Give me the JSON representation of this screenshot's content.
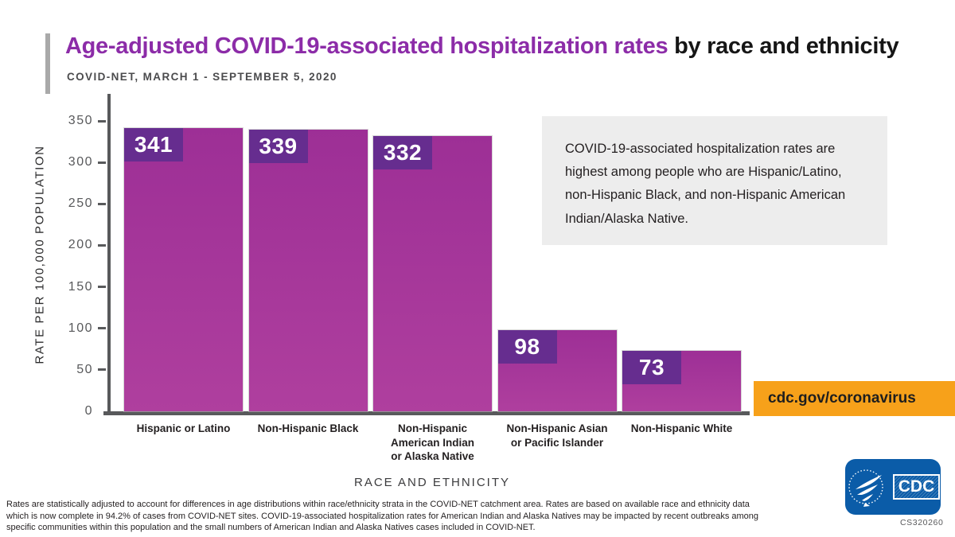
{
  "header": {
    "title_highlight": "Age-adjusted COVID-19-associated hospitalization rates",
    "title_rest": " by race and ethnicity",
    "subtitle": "COVID-NET, MARCH 1 - SEPTEMBER 5, 2020"
  },
  "chart_data": {
    "type": "bar",
    "title": "Age-adjusted COVID-19-associated hospitalization rates by race and ethnicity",
    "categories": [
      "Hispanic or Latino",
      "Non-Hispanic Black",
      "Non-Hispanic\nAmerican Indian\nor Alaska Native",
      "Non-Hispanic Asian\nor Pacific Islander",
      "Non-Hispanic White"
    ],
    "values": [
      341,
      339,
      332,
      98,
      73
    ],
    "xlabel": "RACE AND ETHNICITY",
    "ylabel": "RATE PER 100,000 POPULATION",
    "ylim": [
      0,
      350
    ],
    "yticks": [
      0,
      50,
      100,
      150,
      200,
      250,
      300,
      350
    ],
    "grid": false,
    "legend": false,
    "bar_value_labels": [
      "341",
      "339",
      "332",
      "98",
      "73"
    ]
  },
  "callout": {
    "text": "COVID-19-associated hospitalization rates are highest among people who are Hispanic/Latino, non-Hispanic Black, and non-Hispanic American Indian/Alaska Native."
  },
  "banner": {
    "url_label": "cdc.gov/coronavirus"
  },
  "logo": {
    "label": "CDC"
  },
  "footer": {
    "note": "Rates are statistically adjusted to account for differences in age distributions within race/ethnicity strata in the COVID-NET catchment area. Rates are based on available race and ethnicity data which is now complete in 94.2% of cases from COVID-NET sites. COVID-19-associated hospitalization rates for American Indian and Alaska Natives may be impacted by recent outbreaks among specific communities within this population and the small numbers of American Indian and Alaska Natives cases included in COVID-NET.",
    "doc_id": "CS320260"
  },
  "colors": {
    "title_purple": "#8C2CA8",
    "bar_gradient_top": "#9D2F96",
    "bar_gradient_bottom": "#AF3F9E",
    "value_box_purple": "#662D8F",
    "axis_gray": "#58595B",
    "banner_orange": "#F7A11A",
    "logo_blue": "#0B5CA8",
    "callout_bg": "#EDEDED"
  }
}
